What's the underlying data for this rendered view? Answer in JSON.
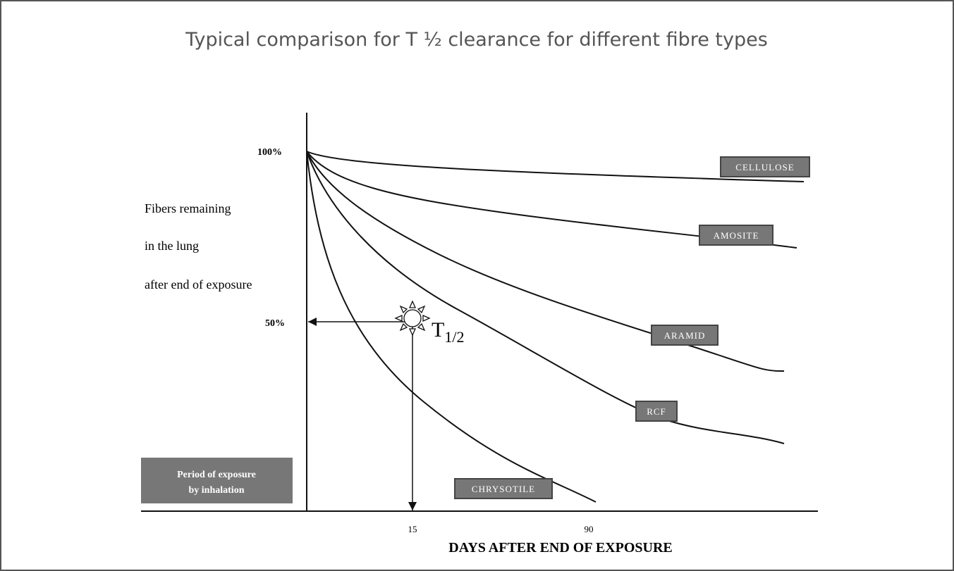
{
  "title": "Typical comparison for T ½ clearance for different fibre types",
  "y_axis": {
    "label_lines": [
      "Fibers remaining",
      "in the lung",
      "after end of exposure"
    ],
    "ticks": [
      "100%",
      "50%"
    ]
  },
  "x_axis": {
    "label": "DAYS AFTER END OF EXPOSURE",
    "ticks": [
      "15",
      "90"
    ]
  },
  "curves": [
    {
      "label": "CELLULOSE"
    },
    {
      "label": "AMOSITE"
    },
    {
      "label": "ARAMID"
    },
    {
      "label": "RCF"
    },
    {
      "label": "CHRYSOTILE"
    }
  ],
  "period_box": {
    "lines": [
      "Period of exposure",
      "by inhalation"
    ]
  },
  "annotation": {
    "main": "T",
    "sub": "1/2"
  }
}
